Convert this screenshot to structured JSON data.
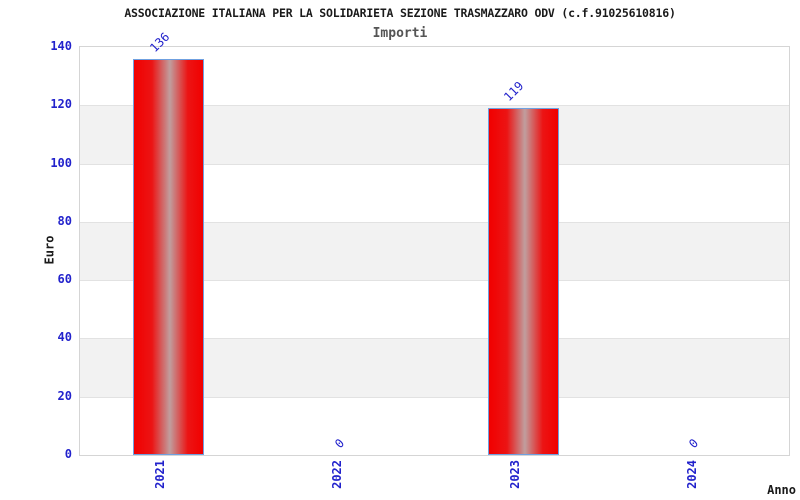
{
  "title": "ASSOCIAZIONE ITALIANA PER LA SOLIDARIETA SEZIONE TRASMAZZARO ODV (c.f.91025610816)",
  "subtitle": "Importi",
  "chart_data": {
    "type": "bar",
    "categories": [
      "2021",
      "2022",
      "2023",
      "2024"
    ],
    "values": [
      136,
      0,
      119,
      0
    ],
    "bar_labels": [
      "136",
      "0",
      "119",
      "0"
    ],
    "title": "ASSOCIAZIONE ITALIANA PER LA SOLIDARIETA SEZIONE TRASMAZZARO ODV (c.f.91025610816)",
    "subtitle": "Importi",
    "xlabel": "Anno",
    "ylabel": "Euro",
    "ylim": [
      0,
      140
    ],
    "ytick_step": 20,
    "ytick_labels": [
      "0",
      "20",
      "40",
      "60",
      "80",
      "100",
      "120",
      "140"
    ],
    "legend": "none",
    "grid": "horizontal-bands",
    "colors": {
      "bar_fill_edge": "#f10000",
      "bar_fill_center": "#c09e9e",
      "bar_border": "#6fa0e0",
      "tick_text": "#2222cc",
      "value_label_text": "#2222cc",
      "band_gray": "#f2f2f2",
      "band_white": "#ffffff",
      "gridline": "#e2e2e2",
      "plot_border": "#d5d5d5",
      "title_text": "#1a1a1a",
      "subtitle_text": "#555555"
    }
  }
}
